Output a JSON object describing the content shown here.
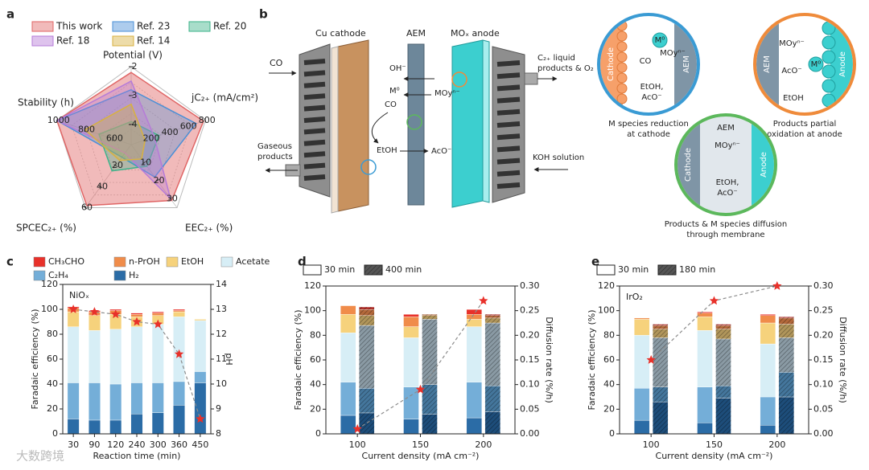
{
  "panel_labels": [
    "a",
    "b",
    "c",
    "d",
    "e"
  ],
  "watermark": "大数跨境",
  "diagram": {
    "cu_cathode": "Cu cathode",
    "aem": "AEM",
    "anode": "MOₓ anode",
    "co_in": "CO",
    "oh": "OH⁻",
    "m0": "M⁰",
    "moy": "MOyⁿ⁻",
    "co": "CO",
    "etoh": "EtOH",
    "aco": "AcO⁻",
    "gas": [
      "Gaseous",
      "products"
    ],
    "liquid": [
      "C₂₊ liquid",
      "products & O₂"
    ],
    "koh": "KOH solution",
    "insets": [
      {
        "left": "Cathode",
        "right": "AEM",
        "species": [
          "M⁰",
          "MOyⁿ⁻",
          "CO",
          "EtOH,",
          "AcO⁻"
        ],
        "caption": [
          "M species reduction",
          "at cathode"
        ]
      },
      {
        "left": "AEM",
        "right": "Anode",
        "species": [
          "MOyⁿ⁻",
          "AcO⁻",
          "M⁰",
          "EtOH"
        ],
        "caption": [
          "Products partial",
          "oxidation at anode"
        ]
      },
      {
        "left": "Cathode",
        "right": "Anode",
        "species": [
          "AEM",
          "MOyⁿ⁻",
          "EtOH,",
          "AcO⁻"
        ],
        "caption": [
          "Products & M species diffusion",
          "through membrane"
        ]
      }
    ]
  },
  "chart_data": [
    {
      "type": "radar",
      "series": [
        {
          "name": "This work",
          "color": "#e06666",
          "values": [
            -2.2,
            780,
            31,
            58,
            1000
          ]
        },
        {
          "name": "Ref. 23",
          "color": "#4a8fd6",
          "values": [
            -2.8,
            700,
            18,
            12,
            1000
          ]
        },
        {
          "name": "Ref. 20",
          "color": "#3db38a",
          "values": [
            -3.9,
            300,
            12,
            25,
            700
          ]
        },
        {
          "name": "Ref. 18",
          "color": "#b67bd8",
          "values": [
            -2.5,
            250,
            30,
            8,
            1000
          ]
        },
        {
          "name": "Ref. 14",
          "color": "#d8b140",
          "values": [
            -3.3,
            150,
            8,
            15,
            800
          ]
        }
      ],
      "axes": [
        {
          "label": "Potential (V)",
          "lim": [
            -4.7,
            -2
          ],
          "ticks": [
            -2,
            -3,
            -4
          ]
        },
        {
          "label": "jC₂₊ (mA/cm²)",
          "lim": [
            0,
            800
          ],
          "ticks": [
            200,
            400,
            600,
            800
          ]
        },
        {
          "label": "EEC₂₊ (%)",
          "lim": [
            0,
            35
          ],
          "ticks": [
            10,
            20,
            30
          ]
        },
        {
          "label": "SPCEC₂₊ (%)",
          "lim": [
            0,
            60
          ],
          "ticks": [
            20,
            40,
            60
          ]
        },
        {
          "label": "Stability (h)",
          "lim": [
            470,
            1000
          ],
          "ticks": [
            600,
            800,
            1000
          ]
        }
      ]
    },
    {
      "type": "bar",
      "stacked": true,
      "annotation": "NiOₓ",
      "xlabel": "Reaction time (min)",
      "ylabel": "Faradaic efficiency (%)",
      "y2label": "pH",
      "categories": [
        30,
        90,
        120,
        240,
        300,
        360,
        450
      ],
      "series": [
        {
          "name": "H₂",
          "color": "#2b6ca6",
          "values": [
            12,
            11,
            11,
            16,
            17,
            23,
            41
          ]
        },
        {
          "name": "C₂H₄",
          "color": "#74aed8",
          "values": [
            29,
            30,
            29,
            25,
            24,
            19,
            9
          ]
        },
        {
          "name": "Acetate",
          "color": "#d7eef6",
          "values": [
            45,
            42,
            44,
            45,
            47,
            52,
            41
          ]
        },
        {
          "name": "EtOH",
          "color": "#f6d27c",
          "values": [
            12,
            12,
            12,
            8,
            7,
            4,
            1
          ]
        },
        {
          "name": "n-PrOH",
          "color": "#f08c4a",
          "values": [
            3,
            3,
            3,
            2,
            2,
            1,
            0
          ]
        },
        {
          "name": "CH₃CHO",
          "color": "#e8312a",
          "values": [
            1,
            1,
            1,
            1,
            1,
            1,
            0
          ]
        }
      ],
      "ylim": [
        0,
        120
      ],
      "yticks": [
        0,
        20,
        40,
        60,
        80,
        100,
        120
      ],
      "y2lim": [
        8,
        14
      ],
      "y2ticks": [
        8,
        9,
        10,
        11,
        12,
        13,
        14
      ],
      "y2_series": {
        "axis": "y2",
        "color": "#8c8c8c",
        "marker_color": "#e8312a",
        "values": [
          13.0,
          12.9,
          12.8,
          12.5,
          12.4,
          11.2,
          8.6
        ]
      }
    },
    {
      "type": "bar",
      "stacked": true,
      "xlabel": "Current density (mA cm⁻²)",
      "ylabel": "Faradaic efficiency (%)",
      "y2label": "Diffusion rate (%/h)",
      "categories": [
        100,
        150,
        200
      ],
      "groups": [
        {
          "name": "30 min",
          "hatch": false,
          "series": [
            {
              "color": "#2b6ca6",
              "values": [
                15,
                12,
                13
              ]
            },
            {
              "color": "#74aed8",
              "values": [
                27,
                26,
                29
              ]
            },
            {
              "color": "#d7eef6",
              "values": [
                40,
                40,
                45
              ]
            },
            {
              "color": "#f6d27c",
              "values": [
                15,
                9,
                6
              ]
            },
            {
              "color": "#f08c4a",
              "values": [
                7,
                8,
                4
              ]
            },
            {
              "color": "#e8312a",
              "values": [
                0,
                2,
                4
              ]
            }
          ]
        },
        {
          "name": "400 min",
          "hatch": true,
          "series": [
            {
              "color": "#1d4d7a",
              "values": [
                17,
                16,
                18
              ]
            },
            {
              "color": "#44769c",
              "values": [
                20,
                24,
                21
              ]
            },
            {
              "color": "#8a9aa4",
              "values": [
                51,
                53,
                51
              ]
            },
            {
              "color": "#b0955a",
              "values": [
                8,
                3,
                4
              ]
            },
            {
              "color": "#b3683a",
              "values": [
                5,
                1,
                2
              ]
            },
            {
              "color": "#b02a24",
              "values": [
                2,
                0,
                1
              ]
            }
          ]
        }
      ],
      "ylim": [
        0,
        120
      ],
      "yticks": [
        0,
        20,
        40,
        60,
        80,
        100,
        120
      ],
      "y2lim": [
        0,
        0.3
      ],
      "y2ticks": [
        {
          "value": 0,
          "label": "0.00"
        },
        0.05,
        {
          "value": 0.1,
          "label": "0.10"
        },
        0.15,
        {
          "value": 0.2,
          "label": "0.20"
        },
        0.25,
        {
          "value": 0.3,
          "label": "0.30"
        }
      ],
      "y2_series": {
        "axis": "y2",
        "color": "#8c8c8c",
        "marker_color": "#e8312a",
        "values": [
          0.01,
          0.09,
          0.27
        ]
      }
    },
    {
      "type": "bar",
      "stacked": true,
      "annotation": "IrO₂",
      "xlabel": "Current density (mA cm⁻²)",
      "ylabel": "Faradaic efficiency (%)",
      "y2label": "Diffusion rate (%/h)",
      "categories": [
        100,
        150,
        200
      ],
      "groups": [
        {
          "name": "30 min",
          "hatch": false,
          "series": [
            {
              "color": "#2b6ca6",
              "values": [
                11,
                9,
                7
              ]
            },
            {
              "color": "#74aed8",
              "values": [
                26,
                29,
                23
              ]
            },
            {
              "color": "#d7eef6",
              "values": [
                43,
                46,
                43
              ]
            },
            {
              "color": "#f6d27c",
              "values": [
                13,
                11,
                17
              ]
            },
            {
              "color": "#f08c4a",
              "values": [
                1,
                3,
                6
              ]
            },
            {
              "color": "#e8312a",
              "values": [
                0,
                1,
                1
              ]
            }
          ]
        },
        {
          "name": "180 min",
          "hatch": true,
          "series": [
            {
              "color": "#1d4d7a",
              "values": [
                26,
                29,
                30
              ]
            },
            {
              "color": "#44769c",
              "values": [
                12,
                10,
                20
              ]
            },
            {
              "color": "#8a9aa4",
              "values": [
                40,
                38,
                28
              ]
            },
            {
              "color": "#b0955a",
              "values": [
                7,
                8,
                11
              ]
            },
            {
              "color": "#b3683a",
              "values": [
                3,
                3,
                5
              ]
            },
            {
              "color": "#b02a24",
              "values": [
                1,
                1,
                1
              ]
            }
          ]
        }
      ],
      "ylim": [
        0,
        120
      ],
      "yticks": [
        0,
        20,
        40,
        60,
        80,
        100,
        120
      ],
      "y2lim": [
        0,
        0.3
      ],
      "y2ticks": [
        {
          "value": 0,
          "label": "0.00"
        },
        0.05,
        {
          "value": 0.1,
          "label": "0.10"
        },
        0.15,
        {
          "value": 0.2,
          "label": "0.20"
        },
        0.25,
        {
          "value": 0.3,
          "label": "0.30"
        }
      ],
      "y2_series": {
        "axis": "y2",
        "color": "#8c8c8c",
        "marker_color": "#e8312a",
        "values": [
          0.15,
          0.27,
          0.3
        ]
      }
    }
  ]
}
